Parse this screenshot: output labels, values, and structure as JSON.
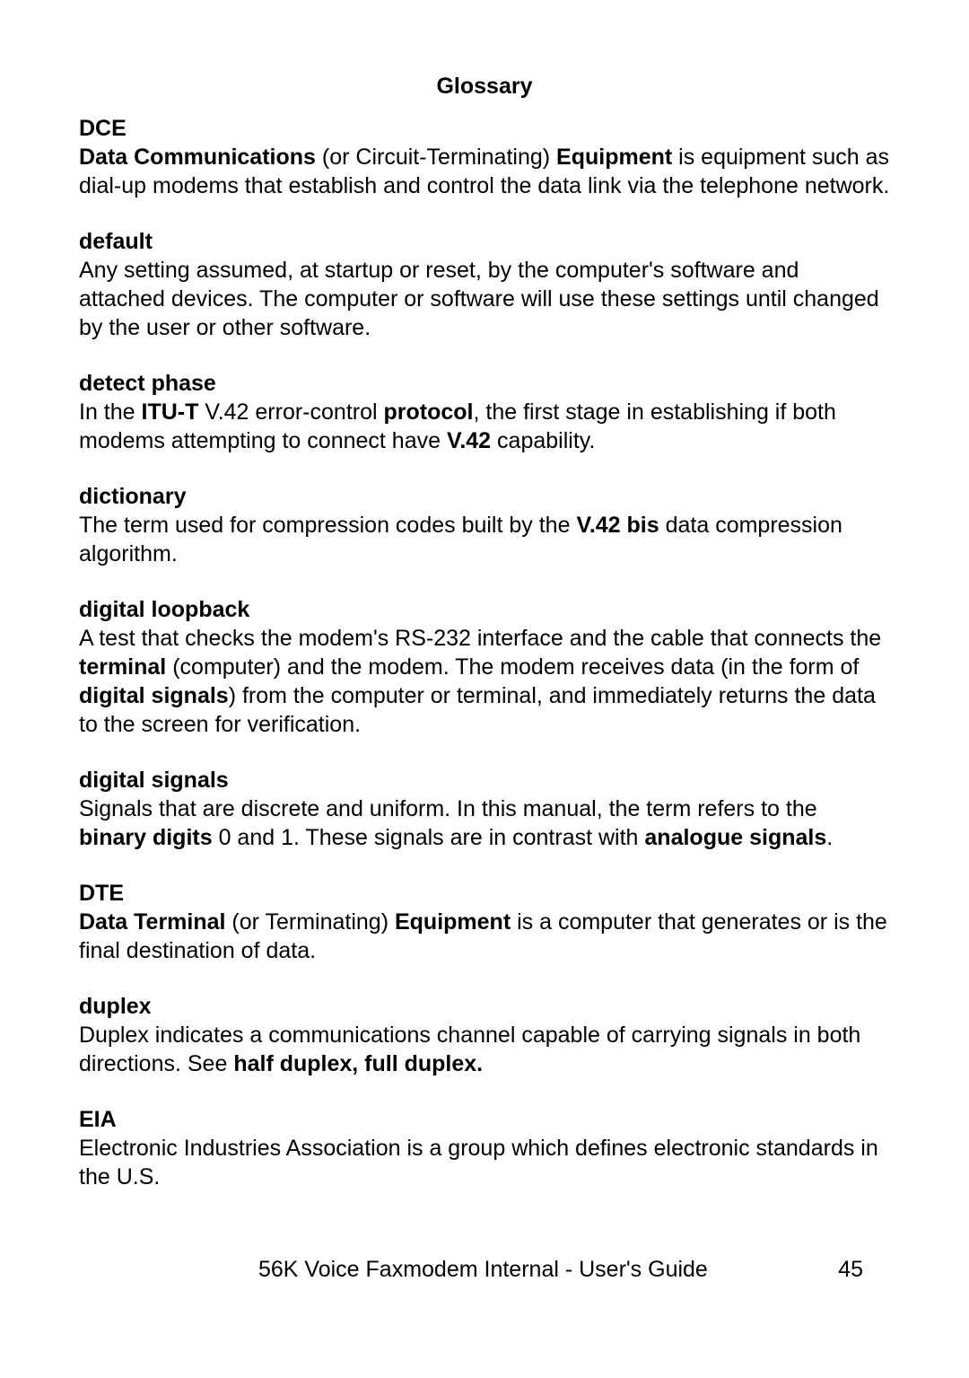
{
  "header": "Glossary",
  "entries": {
    "dce": {
      "term": "DCE",
      "p1a": "Data Communications",
      "p1b": " (or Circuit-Terminating) ",
      "p1c": "Equipment",
      "p1d": " is equipment such as dial-up modems that establish and control the data link via the telephone network."
    },
    "default": {
      "term": "default",
      "def": "Any setting assumed, at startup or reset, by the computer's software and attached devices. The computer or software will use these settings until changed by the user or other software."
    },
    "detect": {
      "term": "detect phase",
      "a": "In the ",
      "b": "ITU-T",
      "c": " V.42 error-control ",
      "d": "protocol",
      "e": ", the first stage in establishing if both modems attempting to connect have ",
      "f": "V.42",
      "g": " capability."
    },
    "dictionary": {
      "term": "dictionary",
      "a": "The term used for compression codes built by the ",
      "b": "V.42 bis",
      "c": " data compression algorithm."
    },
    "loopback": {
      "term": "digital loopback",
      "a": "A test that checks the modem's RS-232 interface and the cable that connects the ",
      "b": "terminal",
      "c": " (computer) and the modem. The modem receives data (in the form of ",
      "d": "digital signals",
      "e": ") from the computer or terminal, and immediately returns the data to the screen for verification."
    },
    "signals": {
      "term": "digital signals",
      "a": "Signals that are discrete and uniform. In this manual, the term refers to the ",
      "b": "binary digits",
      "c": " 0 and 1. These signals are in contrast with ",
      "d": "analogue signals",
      "e": "."
    },
    "dte": {
      "term": "DTE",
      "a": "Data Terminal",
      "b": " (or Terminating) ",
      "c": "Equipment",
      "d": " is a computer that generates or is the final destination of data."
    },
    "duplex": {
      "term": "duplex",
      "a": "Duplex indicates a communications channel capable of carrying signals in both directions. See ",
      "b": "half duplex, full duplex."
    },
    "eia": {
      "term": "EIA",
      "def": "Electronic Industries Association is a group which defines electronic standards in the U.S."
    }
  },
  "footer": {
    "title": "56K Voice Faxmodem Internal - User's Guide",
    "page": "45"
  }
}
